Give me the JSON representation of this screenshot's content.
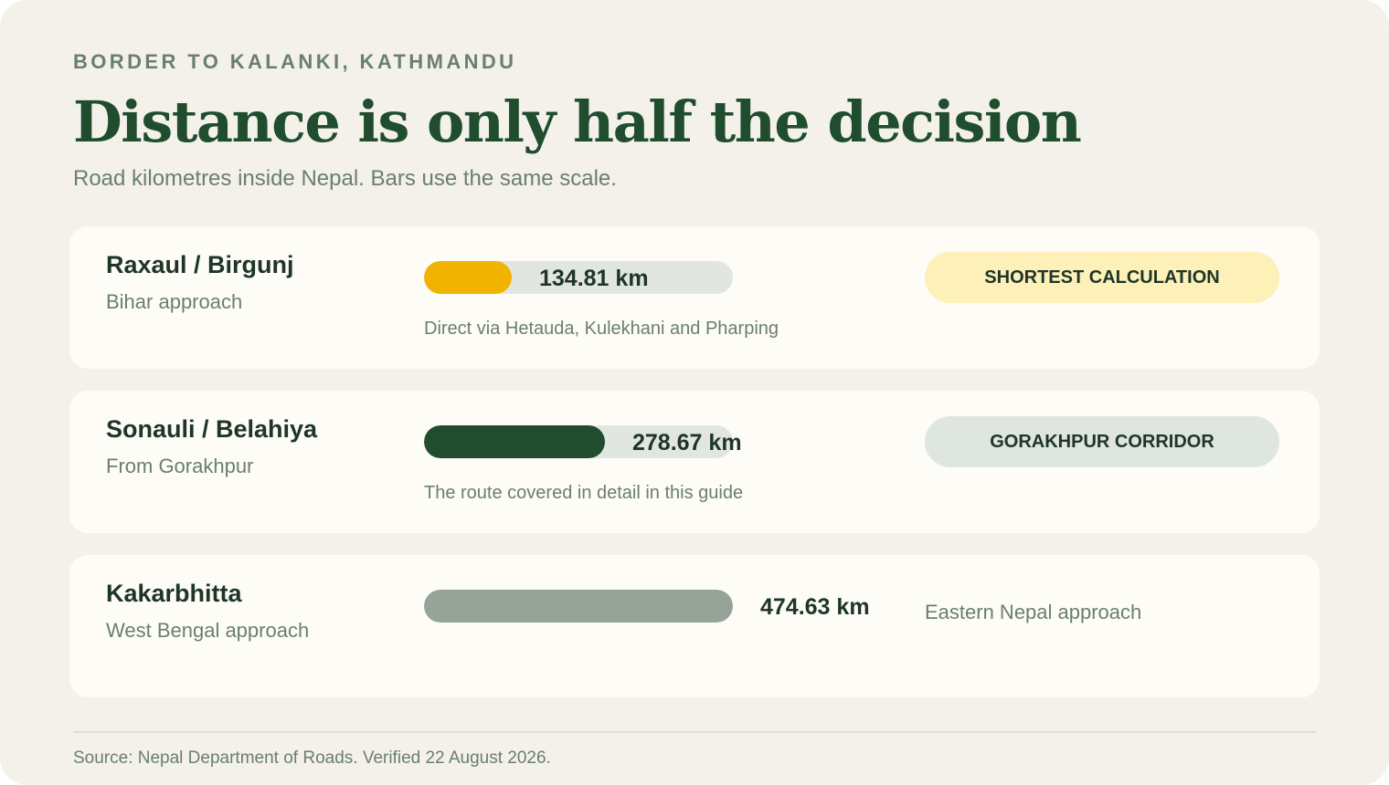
{
  "header": {
    "eyebrow": "BORDER TO KALANKI, KATHMANDU",
    "title": "Distance is only half the decision",
    "subtitle": "Road kilometres inside Nepal. Bars use the same scale."
  },
  "chart_data": {
    "type": "bar",
    "orientation": "horizontal",
    "title": "Distance is only half the decision",
    "subtitle": "Road kilometres inside Nepal. Bars use the same scale.",
    "unit": "km",
    "scale_max": 474.63,
    "categories": [
      "Raxaul / Birgunj",
      "Sonauli / Belahiya",
      "Kakarbhitta"
    ],
    "values": [
      134.81,
      278.67,
      474.63
    ],
    "rows": [
      {
        "name": "Raxaul / Birgunj",
        "sub": "Bihar approach",
        "value": 134.81,
        "value_label": "134.81 km",
        "note": "Direct via Hetauda, Kulekhani and Pharping",
        "badge": "SHORTEST CALCULATION",
        "side_note": "",
        "bar_color": "#f0b400",
        "badge_color": "#fdf0b8"
      },
      {
        "name": "Sonauli / Belahiya",
        "sub": "From Gorakhpur",
        "value": 278.67,
        "value_label": "278.67 km",
        "note": "The route covered in detail in this guide",
        "badge": "GORAKHPUR CORRIDOR",
        "side_note": "",
        "bar_color": "#1f4d2e",
        "badge_color": "#dfe5df"
      },
      {
        "name": "Kakarbhitta",
        "sub": "West Bengal approach",
        "value": 474.63,
        "value_label": "474.63 km",
        "note": "",
        "badge": "",
        "side_note": "Eastern Nepal approach",
        "bar_color": "#95a398",
        "badge_color": ""
      }
    ]
  },
  "footer": {
    "source": "Source: Nepal Department of Roads. Verified 22 August 2026."
  },
  "colors": {
    "background": "#f3f1ea",
    "card": "#fdfcf7",
    "title": "#1f4d2e",
    "muted": "#6a7f6e",
    "track": "#e2e6e0"
  }
}
